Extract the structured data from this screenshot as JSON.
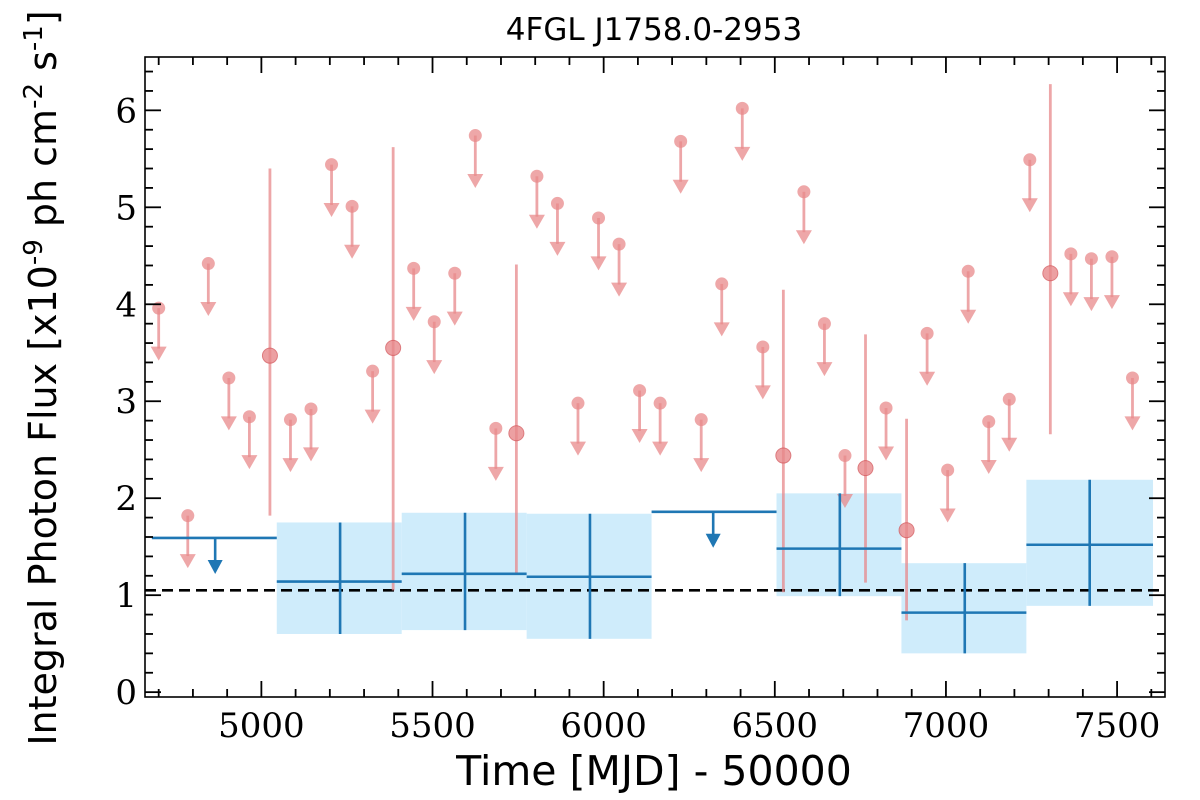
{
  "chart_data": {
    "type": "scatter",
    "title": "4FGL J1758.0-2953",
    "xlabel": "Time [MJD] - 50000",
    "ylabel": "Integral Photon Flux [x10$^{-9}$ ph cm$^{-2}$ s$^{-1}$]",
    "xlim": [
      4660,
      7640
    ],
    "ylim": [
      -0.05,
      6.55
    ],
    "xticks": [
      5000,
      5500,
      6000,
      6500,
      7000,
      7500
    ],
    "yticks": [
      0,
      1,
      2,
      3,
      4,
      5,
      6
    ],
    "grid": false,
    "legend": "none",
    "reference_line": {
      "y": 1.05,
      "style": "dashed"
    },
    "series": [
      {
        "kind": "short_bin_upper_limits",
        "points": [
          {
            "x": 4700,
            "y": 3.96
          },
          {
            "x": 4785,
            "y": 1.82
          },
          {
            "x": 4845,
            "y": 4.42
          },
          {
            "x": 4905,
            "y": 3.24
          },
          {
            "x": 4965,
            "y": 2.84
          },
          {
            "x": 5085,
            "y": 2.81
          },
          {
            "x": 5145,
            "y": 2.92
          },
          {
            "x": 5205,
            "y": 5.44
          },
          {
            "x": 5265,
            "y": 5.01
          },
          {
            "x": 5325,
            "y": 3.31
          },
          {
            "x": 5445,
            "y": 4.37
          },
          {
            "x": 5505,
            "y": 3.82
          },
          {
            "x": 5565,
            "y": 4.32
          },
          {
            "x": 5625,
            "y": 5.74
          },
          {
            "x": 5685,
            "y": 2.72
          },
          {
            "x": 5805,
            "y": 5.32
          },
          {
            "x": 5865,
            "y": 5.04
          },
          {
            "x": 5925,
            "y": 2.98
          },
          {
            "x": 5985,
            "y": 4.89
          },
          {
            "x": 6045,
            "y": 4.62
          },
          {
            "x": 6105,
            "y": 3.11
          },
          {
            "x": 6165,
            "y": 2.98
          },
          {
            "x": 6225,
            "y": 5.68
          },
          {
            "x": 6285,
            "y": 2.81
          },
          {
            "x": 6345,
            "y": 4.21
          },
          {
            "x": 6405,
            "y": 6.02
          },
          {
            "x": 6465,
            "y": 3.56
          },
          {
            "x": 6585,
            "y": 5.16
          },
          {
            "x": 6645,
            "y": 3.8
          },
          {
            "x": 6705,
            "y": 2.44
          },
          {
            "x": 6825,
            "y": 2.93
          },
          {
            "x": 6945,
            "y": 3.7
          },
          {
            "x": 7005,
            "y": 2.29
          },
          {
            "x": 7065,
            "y": 4.34
          },
          {
            "x": 7125,
            "y": 2.79
          },
          {
            "x": 7185,
            "y": 3.02
          },
          {
            "x": 7245,
            "y": 5.49
          },
          {
            "x": 7365,
            "y": 4.52
          },
          {
            "x": 7425,
            "y": 4.47
          },
          {
            "x": 7485,
            "y": 4.49
          },
          {
            "x": 7545,
            "y": 3.24
          }
        ]
      },
      {
        "kind": "short_bin_detections",
        "points": [
          {
            "x": 5025,
            "y": 3.47,
            "ylo": 1.82,
            "yhi": 5.4
          },
          {
            "x": 5385,
            "y": 3.55,
            "ylo": 1.05,
            "yhi": 5.62
          },
          {
            "x": 5745,
            "y": 2.67,
            "ylo": 1.22,
            "yhi": 4.41
          },
          {
            "x": 6525,
            "y": 2.44,
            "ylo": 1.03,
            "yhi": 4.15
          },
          {
            "x": 6765,
            "y": 2.31,
            "ylo": 1.13,
            "yhi": 3.69
          },
          {
            "x": 6885,
            "y": 1.67,
            "ylo": 0.74,
            "yhi": 2.82
          },
          {
            "x": 7305,
            "y": 4.32,
            "ylo": 2.66,
            "yhi": 6.27
          }
        ]
      },
      {
        "kind": "long_bin_detections",
        "points": [
          {
            "x": 5230,
            "xlo": 5045,
            "xhi": 5410,
            "y": 1.14,
            "ylo": 0.6,
            "yhi": 1.75
          },
          {
            "x": 5595,
            "xlo": 5410,
            "xhi": 5775,
            "y": 1.22,
            "ylo": 0.64,
            "yhi": 1.85
          },
          {
            "x": 5960,
            "xlo": 5775,
            "xhi": 6140,
            "y": 1.19,
            "ylo": 0.55,
            "yhi": 1.84
          },
          {
            "x": 6690,
            "xlo": 6505,
            "xhi": 6870,
            "y": 1.48,
            "ylo": 0.99,
            "yhi": 2.05
          },
          {
            "x": 7055,
            "xlo": 6870,
            "xhi": 7235,
            "y": 0.82,
            "ylo": 0.4,
            "yhi": 1.33
          },
          {
            "x": 7420,
            "xlo": 7235,
            "xhi": 7605,
            "y": 1.52,
            "ylo": 0.89,
            "yhi": 2.19
          }
        ]
      },
      {
        "kind": "long_bin_upper_limits",
        "points": [
          {
            "x": 4865,
            "xlo": 4680,
            "xhi": 5045,
            "y": 1.59
          },
          {
            "x": 6320,
            "xlo": 6140,
            "xhi": 6505,
            "y": 1.86
          }
        ]
      }
    ],
    "colors": {
      "short": "#e8898b",
      "long": "#1f77b4",
      "band": "#cfecfb",
      "reference": "#000000"
    }
  }
}
